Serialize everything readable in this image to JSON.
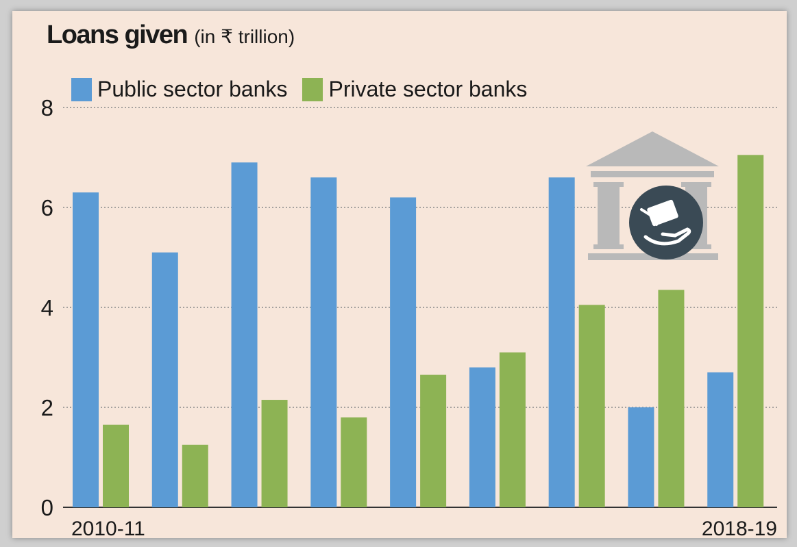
{
  "title": "Loans given",
  "subtitle": "(in ₹ trillion)",
  "colors": {
    "public": "#5b9bd5",
    "private": "#8db354",
    "background": "#f7e6da",
    "icon": "#b9b9b9",
    "icon_dark": "#3a4a55"
  },
  "icon": "bank-building-with-hand-receiving-money",
  "legend_position": "top-left",
  "chart_data": {
    "type": "bar",
    "title": "Loans given",
    "subtitle": "(in ₹ trillion)",
    "xlabel": "",
    "ylabel": "",
    "ylim": [
      0,
      8
    ],
    "yticks": [
      0,
      2,
      4,
      6,
      8
    ],
    "grid": true,
    "categories": [
      "2010-11",
      "",
      "",
      "",
      "",
      "",
      "",
      "",
      "2018-19"
    ],
    "series": [
      {
        "name": "Public sector banks",
        "values": [
          6.3,
          5.1,
          6.9,
          6.6,
          6.2,
          2.8,
          6.6,
          2.0,
          2.7
        ]
      },
      {
        "name": "Private sector banks",
        "values": [
          1.65,
          1.25,
          2.15,
          1.8,
          2.65,
          3.1,
          4.05,
          4.35,
          7.05
        ]
      }
    ]
  }
}
